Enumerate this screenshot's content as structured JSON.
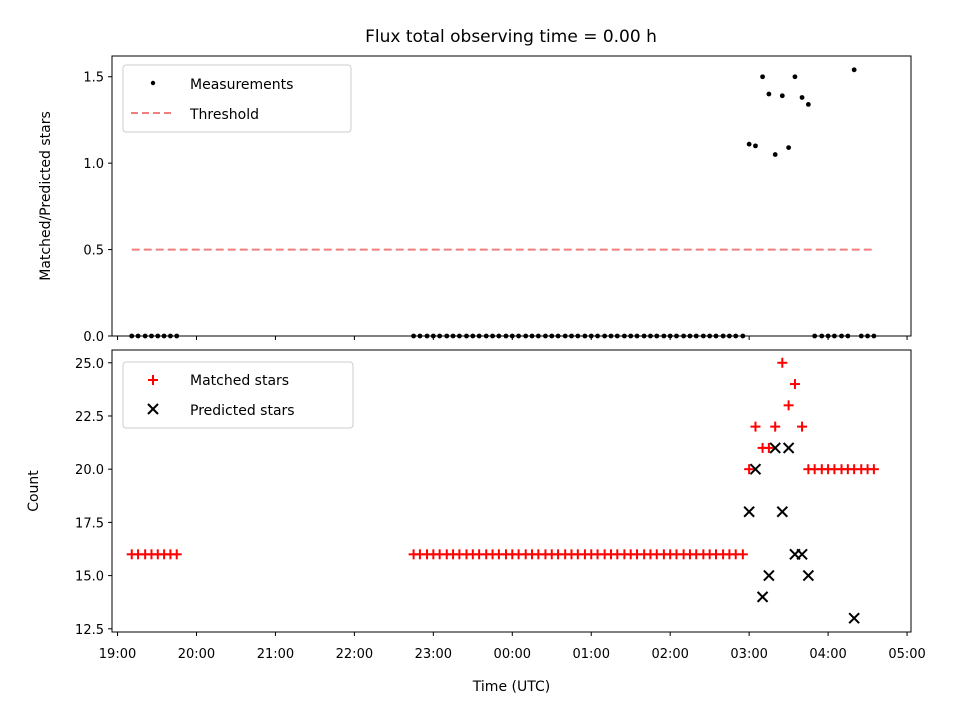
{
  "title": "Flux total observing time = 0.00 h",
  "xlabel": "Time (UTC)",
  "x_tick_labels": [
    "19:00",
    "20:00",
    "21:00",
    "22:00",
    "23:00",
    "00:00",
    "01:00",
    "02:00",
    "03:00",
    "04:00",
    "05:00"
  ],
  "colors": {
    "measurements": "#000000",
    "threshold": "#f08080",
    "matched": "#ff0000",
    "predicted": "#000000"
  },
  "chart_data": [
    {
      "type": "scatter",
      "panel": "top",
      "xlabel": "",
      "ylabel": "Matched/Predicted stars",
      "xlim": [
        18.93,
        29.05
      ],
      "ylim": [
        0,
        1.62
      ],
      "yticks": [
        0.0,
        0.5,
        1.0,
        1.5
      ],
      "ytick_labels": [
        "0.0",
        "0.5",
        "1.0",
        "1.5"
      ],
      "legend": [
        "Measurements",
        "Threshold"
      ],
      "legend_position": "upper left",
      "series": [
        {
          "name": "Measurements",
          "marker": "dot",
          "points": [
            [
              19.18,
              0
            ],
            [
              19.26,
              0
            ],
            [
              19.35,
              0
            ],
            [
              19.43,
              0
            ],
            [
              19.51,
              0
            ],
            [
              19.59,
              0
            ],
            [
              19.67,
              0
            ],
            [
              19.75,
              0
            ],
            [
              22.75,
              0
            ],
            [
              22.83,
              0
            ],
            [
              22.92,
              0
            ],
            [
              23.0,
              0
            ],
            [
              23.08,
              0
            ],
            [
              23.17,
              0
            ],
            [
              23.25,
              0
            ],
            [
              23.33,
              0
            ],
            [
              23.42,
              0
            ],
            [
              23.5,
              0
            ],
            [
              23.58,
              0
            ],
            [
              23.67,
              0
            ],
            [
              23.75,
              0
            ],
            [
              23.83,
              0
            ],
            [
              23.92,
              0
            ],
            [
              24.0,
              0
            ],
            [
              24.08,
              0
            ],
            [
              24.17,
              0
            ],
            [
              24.25,
              0
            ],
            [
              24.33,
              0
            ],
            [
              24.42,
              0
            ],
            [
              24.5,
              0
            ],
            [
              24.58,
              0
            ],
            [
              24.67,
              0
            ],
            [
              24.75,
              0
            ],
            [
              24.83,
              0
            ],
            [
              24.92,
              0
            ],
            [
              25.0,
              0
            ],
            [
              25.08,
              0
            ],
            [
              25.17,
              0
            ],
            [
              25.25,
              0
            ],
            [
              25.33,
              0
            ],
            [
              25.42,
              0
            ],
            [
              25.5,
              0
            ],
            [
              25.58,
              0
            ],
            [
              25.67,
              0
            ],
            [
              25.75,
              0
            ],
            [
              25.83,
              0
            ],
            [
              25.92,
              0
            ],
            [
              26.0,
              0
            ],
            [
              26.08,
              0
            ],
            [
              26.17,
              0
            ],
            [
              26.25,
              0
            ],
            [
              26.33,
              0
            ],
            [
              26.42,
              0
            ],
            [
              26.5,
              0
            ],
            [
              26.58,
              0
            ],
            [
              26.67,
              0
            ],
            [
              26.75,
              0
            ],
            [
              26.83,
              0
            ],
            [
              26.92,
              0
            ],
            [
              27.0,
              1.11
            ],
            [
              27.08,
              1.1
            ],
            [
              27.17,
              1.5
            ],
            [
              27.25,
              1.4
            ],
            [
              27.33,
              1.05
            ],
            [
              27.42,
              1.39
            ],
            [
              27.5,
              1.09
            ],
            [
              27.58,
              1.5
            ],
            [
              27.67,
              1.38
            ],
            [
              27.75,
              1.34
            ],
            [
              27.83,
              0
            ],
            [
              27.92,
              0
            ],
            [
              28.0,
              0
            ],
            [
              28.08,
              0
            ],
            [
              28.17,
              0
            ],
            [
              28.25,
              0
            ],
            [
              28.33,
              1.54
            ],
            [
              28.42,
              0
            ],
            [
              28.5,
              0
            ],
            [
              28.58,
              0
            ]
          ]
        },
        {
          "name": "Threshold",
          "style": "dashed",
          "x": [
            19.18,
            28.58
          ],
          "y": [
            0.5,
            0.5
          ]
        }
      ]
    },
    {
      "type": "scatter",
      "panel": "bottom",
      "xlabel": "Time (UTC)",
      "ylabel": "Count",
      "xlim": [
        18.93,
        29.05
      ],
      "ylim": [
        12.35,
        25.6
      ],
      "yticks": [
        12.5,
        15.0,
        17.5,
        20.0,
        22.5,
        25.0
      ],
      "ytick_labels": [
        "12.5",
        "15.0",
        "17.5",
        "20.0",
        "22.5",
        "25.0"
      ],
      "legend": [
        "Matched stars",
        "Predicted stars"
      ],
      "legend_position": "upper left",
      "series": [
        {
          "name": "Matched stars",
          "marker": "plus",
          "points": [
            [
              19.18,
              16
            ],
            [
              19.26,
              16
            ],
            [
              19.35,
              16
            ],
            [
              19.43,
              16
            ],
            [
              19.51,
              16
            ],
            [
              19.59,
              16
            ],
            [
              19.67,
              16
            ],
            [
              19.75,
              16
            ],
            [
              22.75,
              16
            ],
            [
              22.83,
              16
            ],
            [
              22.92,
              16
            ],
            [
              23.0,
              16
            ],
            [
              23.08,
              16
            ],
            [
              23.17,
              16
            ],
            [
              23.25,
              16
            ],
            [
              23.33,
              16
            ],
            [
              23.42,
              16
            ],
            [
              23.5,
              16
            ],
            [
              23.58,
              16
            ],
            [
              23.67,
              16
            ],
            [
              23.75,
              16
            ],
            [
              23.83,
              16
            ],
            [
              23.92,
              16
            ],
            [
              24.0,
              16
            ],
            [
              24.08,
              16
            ],
            [
              24.17,
              16
            ],
            [
              24.25,
              16
            ],
            [
              24.33,
              16
            ],
            [
              24.42,
              16
            ],
            [
              24.5,
              16
            ],
            [
              24.58,
              16
            ],
            [
              24.67,
              16
            ],
            [
              24.75,
              16
            ],
            [
              24.83,
              16
            ],
            [
              24.92,
              16
            ],
            [
              25.0,
              16
            ],
            [
              25.08,
              16
            ],
            [
              25.17,
              16
            ],
            [
              25.25,
              16
            ],
            [
              25.33,
              16
            ],
            [
              25.42,
              16
            ],
            [
              25.5,
              16
            ],
            [
              25.58,
              16
            ],
            [
              25.67,
              16
            ],
            [
              25.75,
              16
            ],
            [
              25.83,
              16
            ],
            [
              25.92,
              16
            ],
            [
              26.0,
              16
            ],
            [
              26.08,
              16
            ],
            [
              26.17,
              16
            ],
            [
              26.25,
              16
            ],
            [
              26.33,
              16
            ],
            [
              26.42,
              16
            ],
            [
              26.5,
              16
            ],
            [
              26.58,
              16
            ],
            [
              26.67,
              16
            ],
            [
              26.75,
              16
            ],
            [
              26.83,
              16
            ],
            [
              26.92,
              16
            ],
            [
              27.0,
              20
            ],
            [
              27.08,
              22
            ],
            [
              27.17,
              21
            ],
            [
              27.25,
              21
            ],
            [
              27.33,
              22
            ],
            [
              27.42,
              25
            ],
            [
              27.5,
              23
            ],
            [
              27.58,
              24
            ],
            [
              27.67,
              22
            ],
            [
              27.75,
              20
            ],
            [
              27.83,
              20
            ],
            [
              27.92,
              20
            ],
            [
              28.0,
              20
            ],
            [
              28.08,
              20
            ],
            [
              28.17,
              20
            ],
            [
              28.25,
              20
            ],
            [
              28.33,
              20
            ],
            [
              28.42,
              20
            ],
            [
              28.5,
              20
            ],
            [
              28.58,
              20
            ]
          ]
        },
        {
          "name": "Predicted stars",
          "marker": "x",
          "points": [
            [
              27.0,
              18
            ],
            [
              27.08,
              20
            ],
            [
              27.17,
              14
            ],
            [
              27.25,
              15
            ],
            [
              27.33,
              21
            ],
            [
              27.42,
              18
            ],
            [
              27.5,
              21
            ],
            [
              27.58,
              16
            ],
            [
              27.67,
              16
            ],
            [
              27.75,
              15
            ],
            [
              28.33,
              13
            ]
          ]
        }
      ]
    }
  ]
}
